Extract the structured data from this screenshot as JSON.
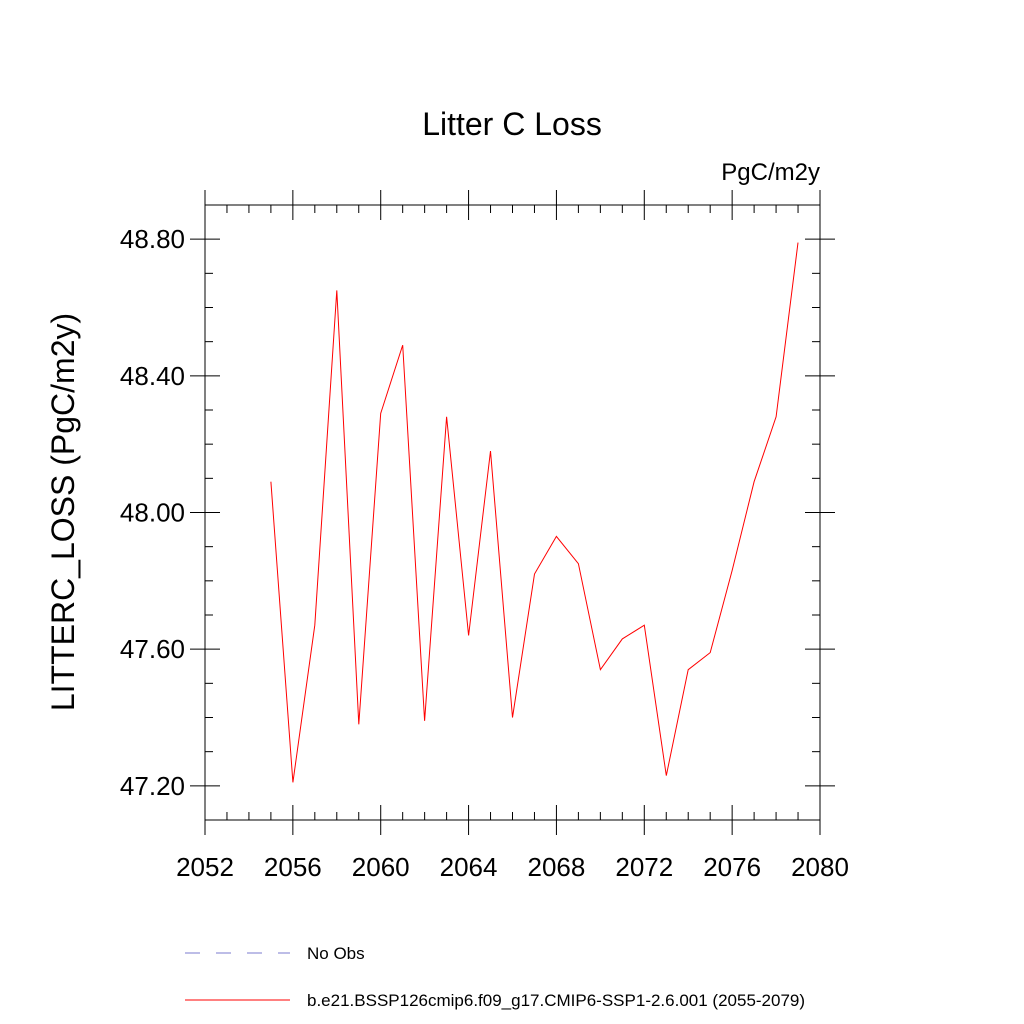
{
  "chart_data": {
    "type": "line",
    "title": "Litter C Loss",
    "units_label": "PgC/m2y",
    "xlabel": "",
    "ylabel": "LITTERC_LOSS  (PgC/m2y)",
    "xlim": [
      2052,
      2080
    ],
    "ylim": [
      47.1,
      48.9
    ],
    "x_ticks": [
      2052,
      2056,
      2060,
      2064,
      2068,
      2072,
      2076,
      2080
    ],
    "x_tick_labels": [
      "2052",
      "2056",
      "2060",
      "2064",
      "2068",
      "2072",
      "2076",
      "2080"
    ],
    "y_ticks": [
      47.2,
      47.6,
      48.0,
      48.4,
      48.8
    ],
    "y_tick_labels": [
      "47.20",
      "47.60",
      "48.00",
      "48.40",
      "48.80"
    ],
    "x_minor_step": 1,
    "y_minor_step": 0.1,
    "grid": false,
    "legend_position": "bottom",
    "series": [
      {
        "name": "b.e21.BSSP126cmip6.f09_g17.CMIP6-SSP1-2.6.001 (2055-2079)",
        "color": "#ff0000",
        "dash": "solid",
        "x": [
          2055,
          2056,
          2057,
          2058,
          2059,
          2060,
          2061,
          2062,
          2063,
          2064,
          2065,
          2066,
          2067,
          2068,
          2069,
          2070,
          2071,
          2072,
          2073,
          2074,
          2075,
          2076,
          2077,
          2078,
          2079
        ],
        "values": [
          48.09,
          47.21,
          47.67,
          48.65,
          47.38,
          48.29,
          48.49,
          47.39,
          48.28,
          47.64,
          48.18,
          47.4,
          47.82,
          47.93,
          47.85,
          47.54,
          47.63,
          47.67,
          47.23,
          47.54,
          47.59,
          47.83,
          48.09,
          48.28,
          48.79
        ]
      }
    ],
    "legend": [
      {
        "label": "No Obs",
        "color": "#7b7bcf",
        "dash": "dashed"
      },
      {
        "label": "b.e21.BSSP126cmip6.f09_g17.CMIP6-SSP1-2.6.001 (2055-2079)",
        "color": "#ff0000",
        "dash": "solid"
      }
    ]
  }
}
